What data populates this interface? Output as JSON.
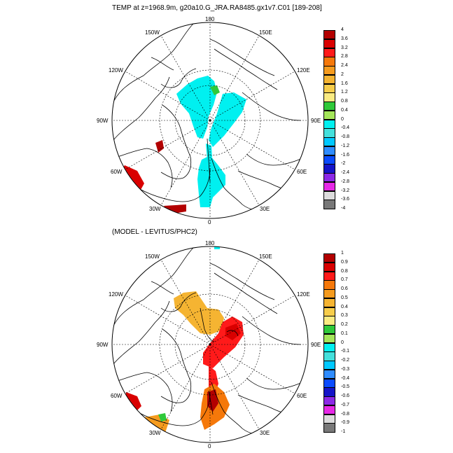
{
  "top_panel": {
    "title": "TEMP at z=1968.9m, g20a10.G_JRA.RA8485.gx1v7.C01 [189-208]",
    "longitude_labels": [
      "180",
      "150E",
      "120E",
      "90E",
      "60E",
      "30E",
      "0",
      "30W",
      "60W",
      "90W",
      "120W",
      "150W"
    ],
    "colorbar": {
      "labels": [
        "4",
        "3.6",
        "3.2",
        "2.8",
        "2.4",
        "2",
        "1.6",
        "1.2",
        "0.8",
        "0.4",
        "0",
        "-0.4",
        "-0.8",
        "-1.2",
        "-1.6",
        "-2",
        "-2.4",
        "-2.8",
        "-3.2",
        "-3.6",
        "-4"
      ],
      "colors": [
        "#b30000",
        "#d90000",
        "#ff1a1a",
        "#f5780a",
        "#f59b1e",
        "#f5b432",
        "#f7cd4b",
        "#faeb82",
        "#2fc93a",
        "#a5e65a",
        "#00f0f0",
        "#44e0dc",
        "#00c8ff",
        "#2f8cff",
        "#0a4bff",
        "#1414c8",
        "#8c28e6",
        "#e628e6",
        "#dcdcdc",
        "#787878"
      ]
    }
  },
  "bottom_panel": {
    "title": "(MODEL - LEVITUS/PHC2)",
    "longitude_labels": [
      "180",
      "150E",
      "120E",
      "90E",
      "60E",
      "30E",
      "0",
      "30W",
      "60W",
      "90W",
      "120W",
      "150W"
    ],
    "colorbar": {
      "labels": [
        "1",
        "0.9",
        "0.8",
        "0.7",
        "0.6",
        "0.5",
        "0.4",
        "0.3",
        "0.2",
        "0.1",
        "0",
        "-0.1",
        "-0.2",
        "-0.3",
        "-0.4",
        "-0.5",
        "-0.6",
        "-0.7",
        "-0.8",
        "-0.9",
        "-1"
      ],
      "colors": [
        "#b30000",
        "#d90000",
        "#ff1a1a",
        "#f5780a",
        "#f59b1e",
        "#f5b432",
        "#f7cd4b",
        "#faeb82",
        "#2fc93a",
        "#a5e65a",
        "#00f0f0",
        "#44e0dc",
        "#00c8ff",
        "#2f8cff",
        "#0a4bff",
        "#1414c8",
        "#8c28e6",
        "#e628e6",
        "#dcdcdc",
        "#787878"
      ]
    }
  }
}
